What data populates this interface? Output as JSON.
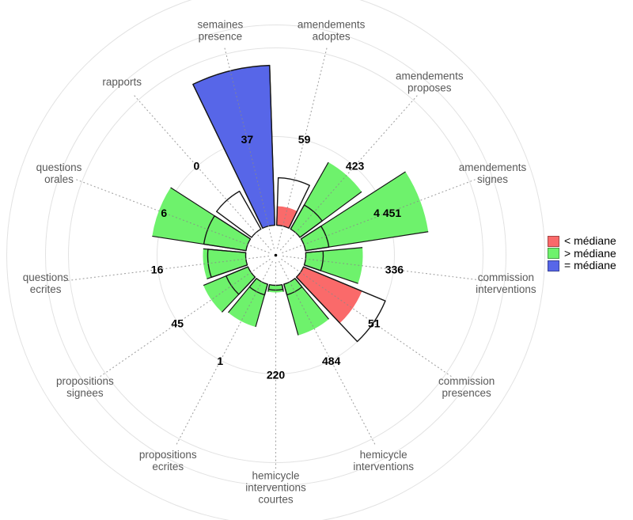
{
  "legend": {
    "items": [
      {
        "key": "lt",
        "label": "< médiane",
        "color": "#fa6a6a"
      },
      {
        "key": "gt",
        "label": "> médiane",
        "color": "#6ef26c"
      },
      {
        "key": "eq",
        "label": "= médiane",
        "color": "#5766e8"
      }
    ]
  },
  "colors": {
    "lt": "#fa6a6a",
    "gt": "#6ef26c",
    "eq": "#5766e8",
    "grid": "#e2e2e2",
    "outline": "#151515",
    "category_label": "#595959",
    "value_label": "#000000"
  },
  "chart_data": {
    "type": "polar_bar_rose",
    "description": "Deputy activity vs median of deputies; colored wedge = deputy value rank, black outlined wedge = median rank",
    "center": {
      "x": 348.5,
      "y": 322.5
    },
    "inner_radius": 38,
    "grid_radii": [
      150,
      262,
      291,
      340
    ],
    "sector_half_angle_deg": 12,
    "axis_line_inner_radius": 9,
    "axis_line_outer_radius": 272,
    "value_label_radius": 151,
    "category_label_radius": 293,
    "category_line_step": 15,
    "legend_position": "right",
    "categories": [
      {
        "label": "semaines presence",
        "lines": [
          "semaines",
          "presence"
        ],
        "value": 37,
        "value_text": "37",
        "status": "eq",
        "angle_deg": -13.846,
        "bar_radius": 240,
        "median_radius": 240
      },
      {
        "label": "amendements adoptes",
        "lines": [
          "amendements",
          "adoptes"
        ],
        "value": 59,
        "value_text": "59",
        "status": "lt",
        "angle_deg": 13.846,
        "bar_radius": 62,
        "median_radius": 98
      },
      {
        "label": "amendements proposes",
        "lines": [
          "amendements",
          "proposes"
        ],
        "value": 423,
        "value_text": "423",
        "status": "gt",
        "angle_deg": 41.538,
        "bar_radius": 135,
        "median_radius": 73
      },
      {
        "label": "amendements signes",
        "lines": [
          "amendements",
          "signes"
        ],
        "value": 4451,
        "value_text": "4 451",
        "status": "gt",
        "angle_deg": 69.231,
        "bar_radius": 195,
        "median_radius": 68
      },
      {
        "label": "commission interventions",
        "lines": [
          "commission",
          "interventions"
        ],
        "value": 336,
        "value_text": "336",
        "status": "gt",
        "angle_deg": 96.923,
        "bar_radius": 110,
        "median_radius": 60
      },
      {
        "label": "commission presences",
        "lines": [
          "commission",
          "presences"
        ],
        "value": 51,
        "value_text": "51",
        "status": "lt",
        "angle_deg": 124.615,
        "bar_radius": 118,
        "median_radius": 150
      },
      {
        "label": "hemicycle interventions",
        "lines": [
          "hemicycle",
          "interventions"
        ],
        "value": 484,
        "value_text": "484",
        "status": "gt",
        "angle_deg": 152.308,
        "bar_radius": 105,
        "median_radius": 52
      },
      {
        "label": "hemicycle interventions courtes",
        "lines": [
          "hemicycle",
          "interventions",
          "courtes"
        ],
        "value": 220,
        "value_text": "220",
        "status": "gt",
        "angle_deg": 180.0,
        "bar_radius": 47,
        "median_radius": 44
      },
      {
        "label": "propositions ecrites",
        "lines": [
          "propositions",
          "ecrites"
        ],
        "value": 1,
        "value_text": "1",
        "status": "gt",
        "angle_deg": 207.692,
        "bar_radius": 94,
        "median_radius": 52
      },
      {
        "label": "propositions signees",
        "lines": [
          "propositions",
          "signees"
        ],
        "value": 45,
        "value_text": "45",
        "status": "gt",
        "angle_deg": 235.385,
        "bar_radius": 99,
        "median_radius": 68
      },
      {
        "label": "questions ecrites",
        "lines": [
          "questions",
          "ecrites"
        ],
        "value": 16,
        "value_text": "16",
        "status": "gt",
        "angle_deg": 263.077,
        "bar_radius": 92,
        "median_radius": 86
      },
      {
        "label": "questions orales",
        "lines": [
          "questions",
          "orales"
        ],
        "value": 6,
        "value_text": "6",
        "status": "gt",
        "angle_deg": 290.769,
        "bar_radius": 158,
        "median_radius": 92
      },
      {
        "label": "rapports",
        "lines": [
          "rapports"
        ],
        "value": 0,
        "value_text": "0",
        "status": "lt",
        "angle_deg": 318.462,
        "bar_radius": 0,
        "median_radius": 93
      }
    ]
  }
}
